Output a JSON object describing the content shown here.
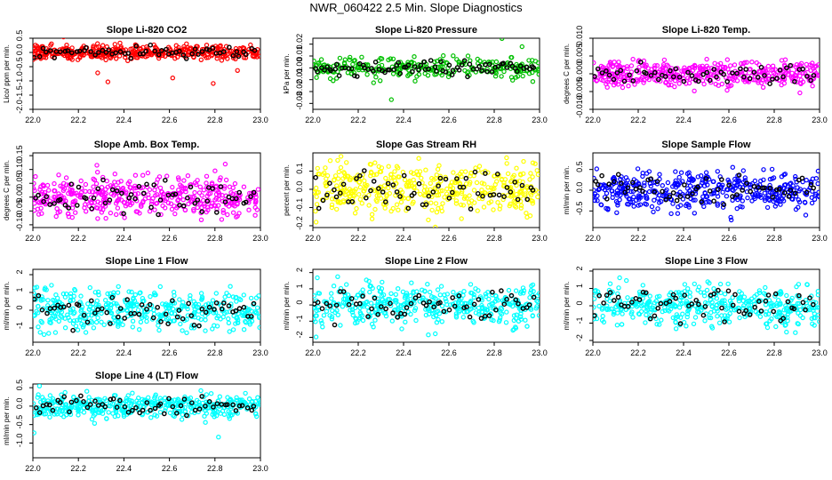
{
  "title": "NWR_060422  2.5 Min. Slope Diagnostics",
  "colors": {
    "highlight": "#000000"
  },
  "chart_data": [
    {
      "type": "scatter",
      "title": "Slope Li-820 CO2",
      "ylabel": "Lico/ ppm per min.",
      "xlim": [
        22.0,
        23.0
      ],
      "ylim": [
        -2.0,
        0.5
      ],
      "xticks": [
        22.0,
        22.2,
        22.4,
        22.6,
        22.8,
        23.0
      ],
      "xtick_labels": [
        "22.0",
        "22.2",
        "22.4",
        "22.6",
        "22.8",
        "23.0"
      ],
      "yticks": [
        -2.0,
        -1.5,
        -1.0,
        -0.5,
        0.0,
        0.5
      ],
      "ytick_labels": [
        "-2.0",
        "-1.5",
        "-1.0",
        "-0.5",
        "0.0",
        "0.5"
      ],
      "color": "#ff0000",
      "center": 0.0,
      "spread": 0.12,
      "n_points": 420,
      "n_highlight": 60
    },
    {
      "type": "scatter",
      "title": "Slope Li-820 Pressure",
      "ylabel": "kPa per min.",
      "xlim": [
        22.0,
        23.0
      ],
      "ylim": [
        -0.035,
        0.025
      ],
      "xticks": [
        22.0,
        22.2,
        22.4,
        22.6,
        22.8,
        23.0
      ],
      "xtick_labels": [
        "22.0",
        "22.2",
        "22.4",
        "22.6",
        "22.8",
        "23.0"
      ],
      "yticks": [
        -0.03,
        -0.02,
        -0.01,
        0.0,
        0.01,
        0.02
      ],
      "ytick_labels": [
        "-0.03",
        "-0.02",
        "-0.01",
        "0.00",
        "0.01",
        "0.02"
      ],
      "color": "#00c000",
      "center": 0.0,
      "spread": 0.004,
      "n_points": 260,
      "n_highlight": 80
    },
    {
      "type": "scatter",
      "title": "Slope Li-820 Temp.",
      "ylabel": "degrees C per min.",
      "xlim": [
        22.0,
        23.0
      ],
      "ylim": [
        -0.01,
        0.01
      ],
      "xticks": [
        22.0,
        22.2,
        22.4,
        22.6,
        22.8,
        23.0
      ],
      "xtick_labels": [
        "22.0",
        "22.2",
        "22.4",
        "22.6",
        "22.8",
        "23.0"
      ],
      "yticks": [
        -0.01,
        -0.005,
        0.0,
        0.005,
        0.01
      ],
      "ytick_labels": [
        "-0.010",
        "-0.005",
        "0.000",
        "0.005",
        "0.010"
      ],
      "color": "#ff00ff",
      "center": 0.0,
      "spread": 0.0018,
      "n_points": 420,
      "n_highlight": 60
    },
    {
      "type": "scatter",
      "title": "Slope Amb. Box Temp.",
      "ylabel": "degrees C per min.",
      "xlim": [
        22.0,
        23.0
      ],
      "ylim": [
        -0.11,
        0.16
      ],
      "xticks": [
        22.0,
        22.2,
        22.4,
        22.6,
        22.8,
        23.0
      ],
      "xtick_labels": [
        "22.0",
        "22.2",
        "22.4",
        "22.6",
        "22.8",
        "23.0"
      ],
      "yticks": [
        -0.1,
        -0.05,
        0.0,
        0.05,
        0.1,
        0.15
      ],
      "ytick_labels": [
        "-0.10",
        "-0.05",
        "0.00",
        "0.05",
        "0.10",
        "0.15"
      ],
      "color": "#ff00ff",
      "center": 0.0,
      "spread": 0.035,
      "n_points": 420,
      "n_highlight": 60
    },
    {
      "type": "scatter",
      "title": "Slope Gas Stream RH",
      "ylabel": "percent per min.",
      "xlim": [
        22.0,
        23.0
      ],
      "ylim": [
        -0.21,
        0.2
      ],
      "xticks": [
        22.0,
        22.2,
        22.4,
        22.6,
        22.8,
        23.0
      ],
      "xtick_labels": [
        "22.0",
        "22.2",
        "22.4",
        "22.6",
        "22.8",
        "23.0"
      ],
      "yticks": [
        -0.2,
        -0.1,
        0.0,
        0.1
      ],
      "ytick_labels": [
        "-0.2",
        "-0.1",
        "0.0",
        "0.1"
      ],
      "color": "#ffff00",
      "center": 0.0,
      "spread": 0.07,
      "n_points": 420,
      "n_highlight": 60
    },
    {
      "type": "scatter",
      "title": "Slope Sample Flow",
      "ylabel": "ml/min per min.",
      "xlim": [
        22.0,
        23.0
      ],
      "ylim": [
        -0.9,
        0.9
      ],
      "xticks": [
        22.0,
        22.2,
        22.4,
        22.6,
        22.8,
        23.0
      ],
      "xtick_labels": [
        "22.0",
        "22.2",
        "22.4",
        "22.6",
        "22.8",
        "23.0"
      ],
      "yticks": [
        -0.5,
        0.0,
        0.5
      ],
      "ytick_labels": [
        "-0.5",
        "0.0",
        "0.5"
      ],
      "color": "#0000ff",
      "center": 0.0,
      "spread": 0.22,
      "n_points": 420,
      "n_highlight": 60
    },
    {
      "type": "scatter",
      "title": "Slope Line 1 Flow",
      "ylabel": "ml/min per min.",
      "xlim": [
        22.0,
        23.0
      ],
      "ylim": [
        -1.8,
        2.3
      ],
      "xticks": [
        22.0,
        22.2,
        22.4,
        22.6,
        22.8,
        23.0
      ],
      "xtick_labels": [
        "22.0",
        "22.2",
        "22.4",
        "22.6",
        "22.8",
        "23.0"
      ],
      "yticks": [
        -1,
        0,
        1,
        2
      ],
      "ytick_labels": [
        "-1",
        "0",
        "1",
        "2"
      ],
      "color": "#00ffff",
      "center": 0.0,
      "spread": 0.55,
      "n_points": 420,
      "n_highlight": 60
    },
    {
      "type": "scatter",
      "title": "Slope Line 2 Flow",
      "ylabel": "ml/min per min.",
      "xlim": [
        22.0,
        23.0
      ],
      "ylim": [
        -2.3,
        2.2
      ],
      "xticks": [
        22.0,
        22.2,
        22.4,
        22.6,
        22.8,
        23.0
      ],
      "xtick_labels": [
        "22.0",
        "22.2",
        "22.4",
        "22.6",
        "22.8",
        "23.0"
      ],
      "yticks": [
        -2,
        -1,
        0,
        1,
        2
      ],
      "ytick_labels": [
        "-2",
        "-1",
        "0",
        "1",
        "2"
      ],
      "color": "#00ffff",
      "center": 0.0,
      "spread": 0.6,
      "n_points": 420,
      "n_highlight": 60
    },
    {
      "type": "scatter",
      "title": "Slope Line 3 Flow",
      "ylabel": "ml/min per min.",
      "xlim": [
        22.0,
        23.0
      ],
      "ylim": [
        -2.1,
        2.1
      ],
      "xticks": [
        22.0,
        22.2,
        22.4,
        22.6,
        22.8,
        23.0
      ],
      "xtick_labels": [
        "22.0",
        "22.2",
        "22.4",
        "22.6",
        "22.8",
        "23.0"
      ],
      "yticks": [
        -2,
        -1,
        0,
        1,
        2
      ],
      "ytick_labels": [
        "-2",
        "-1",
        "0",
        "1",
        "2"
      ],
      "color": "#00ffff",
      "center": 0.0,
      "spread": 0.55,
      "n_points": 420,
      "n_highlight": 60
    },
    {
      "type": "scatter",
      "title": "Slope Line 4 (LT) Flow",
      "ylabel": "ml/min per min.",
      "xlim": [
        22.0,
        23.0
      ],
      "ylim": [
        -1.4,
        0.6
      ],
      "xticks": [
        22.0,
        22.2,
        22.4,
        22.6,
        22.8,
        23.0
      ],
      "xtick_labels": [
        "22.0",
        "22.2",
        "22.4",
        "22.6",
        "22.8",
        "23.0"
      ],
      "yticks": [
        -1.0,
        -0.5,
        0.0,
        0.5
      ],
      "ytick_labels": [
        "-1.0",
        "-0.5",
        "0.0",
        "0.5"
      ],
      "color": "#00ffff",
      "center": 0.0,
      "spread": 0.16,
      "n_points": 420,
      "n_highlight": 60
    }
  ]
}
